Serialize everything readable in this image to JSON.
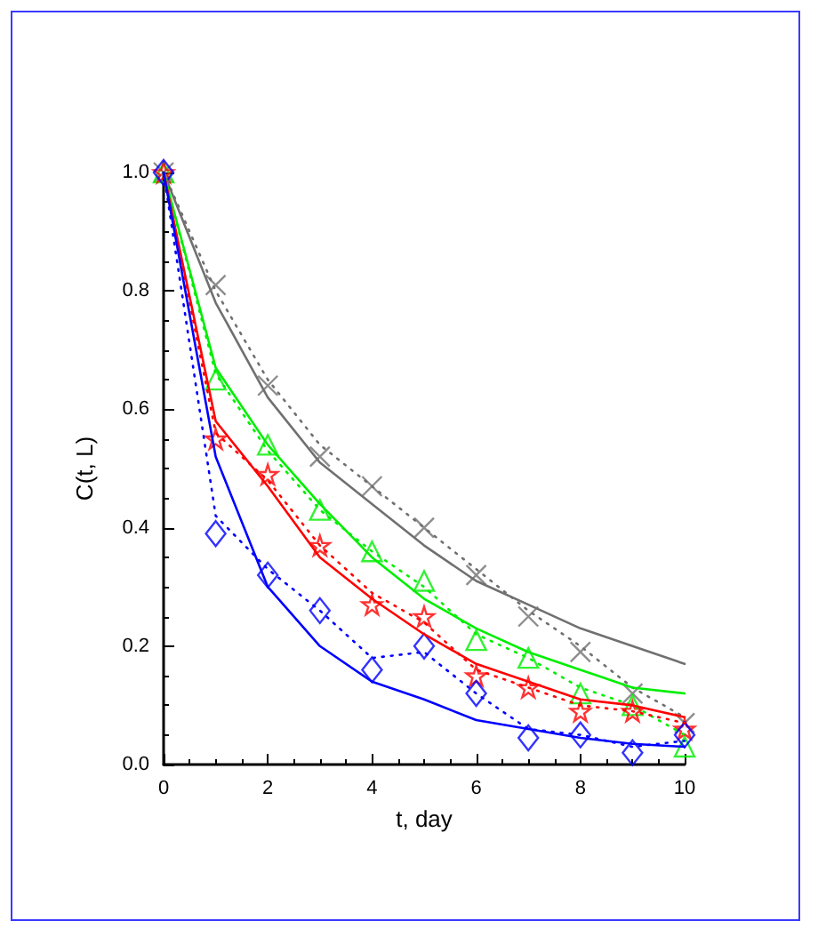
{
  "chart_data": {
    "type": "line",
    "xlabel": "t, day",
    "ylabel": "C(t, L)",
    "x": [
      0,
      1,
      2,
      3,
      4,
      5,
      6,
      7,
      8,
      9,
      10
    ],
    "xlim": [
      0,
      10
    ],
    "xticks": [
      0,
      2,
      4,
      6,
      8,
      10
    ],
    "ylim": [
      0,
      1
    ],
    "yticks": [
      {
        "value": 0,
        "label": "0.0"
      },
      {
        "value": 0.2,
        "label": "0.2"
      },
      {
        "value": 0.4,
        "label": "0.4"
      },
      {
        "value": 0.6,
        "label": "0.6"
      },
      {
        "value": 0.8,
        "label": "0.8"
      },
      {
        "value": 1,
        "label": "1.0"
      }
    ],
    "grid": false,
    "series": [
      {
        "line_style": "solid",
        "marker": "none",
        "color": "#707070",
        "values": [
          1,
          0.78,
          0.62,
          0.51,
          0.44,
          0.37,
          0.31,
          0.27,
          0.23,
          0.2,
          0.17
        ]
      },
      {
        "line_style": "dotted",
        "marker": "none",
        "color": "#707070",
        "values": [
          1,
          0.8,
          0.65,
          0.54,
          0.47,
          0.4,
          0.33,
          0.26,
          0.2,
          0.13,
          0.08
        ]
      },
      {
        "type": "scatter",
        "marker": "cross",
        "color": "#707070",
        "values": [
          1,
          0.81,
          0.64,
          0.52,
          0.47,
          0.4,
          0.32,
          0.25,
          0.19,
          0.12,
          0.07
        ]
      },
      {
        "line_style": "solid",
        "marker": "none",
        "color": "#00ee00",
        "values": [
          1,
          0.67,
          0.54,
          0.44,
          0.35,
          0.28,
          0.23,
          0.19,
          0.16,
          0.13,
          0.12
        ]
      },
      {
        "line_style": "dotted",
        "marker": "none",
        "color": "#00ee00",
        "values": [
          1,
          0.66,
          0.53,
          0.43,
          0.36,
          0.3,
          0.22,
          0.18,
          0.13,
          0.1,
          0.05
        ]
      },
      {
        "type": "scatter",
        "marker": "triangle",
        "color": "#00ee00",
        "values": [
          1,
          0.65,
          0.54,
          0.43,
          0.36,
          0.31,
          0.21,
          0.18,
          0.12,
          0.1,
          0.03
        ]
      },
      {
        "line_style": "solid",
        "marker": "none",
        "color": "#ff0000",
        "values": [
          1,
          0.58,
          0.47,
          0.35,
          0.28,
          0.22,
          0.17,
          0.14,
          0.11,
          0.1,
          0.08
        ]
      },
      {
        "line_style": "dotted",
        "marker": "none",
        "color": "#ff0000",
        "values": [
          1,
          0.56,
          0.48,
          0.37,
          0.29,
          0.24,
          0.16,
          0.13,
          0.1,
          0.09,
          0.07
        ]
      },
      {
        "type": "scatter",
        "marker": "star",
        "color": "#ff0000",
        "values": [
          1,
          0.55,
          0.49,
          0.37,
          0.27,
          0.25,
          0.15,
          0.13,
          0.09,
          0.09,
          0.06
        ]
      },
      {
        "line_style": "solid",
        "marker": "none",
        "color": "#0000ff",
        "values": [
          1,
          0.52,
          0.3,
          0.2,
          0.14,
          0.11,
          0.075,
          0.06,
          0.045,
          0.035,
          0.03
        ]
      },
      {
        "line_style": "dotted",
        "marker": "none",
        "color": "#0000ff",
        "values": [
          1,
          0.42,
          0.33,
          0.26,
          0.18,
          0.19,
          0.12,
          0.06,
          0.05,
          0.03,
          0.04
        ]
      },
      {
        "type": "scatter",
        "marker": "diamond",
        "color": "#0000ff",
        "values": [
          1,
          0.39,
          0.32,
          0.26,
          0.16,
          0.2,
          0.12,
          0.045,
          0.05,
          0.02,
          0.05
        ]
      }
    ]
  }
}
